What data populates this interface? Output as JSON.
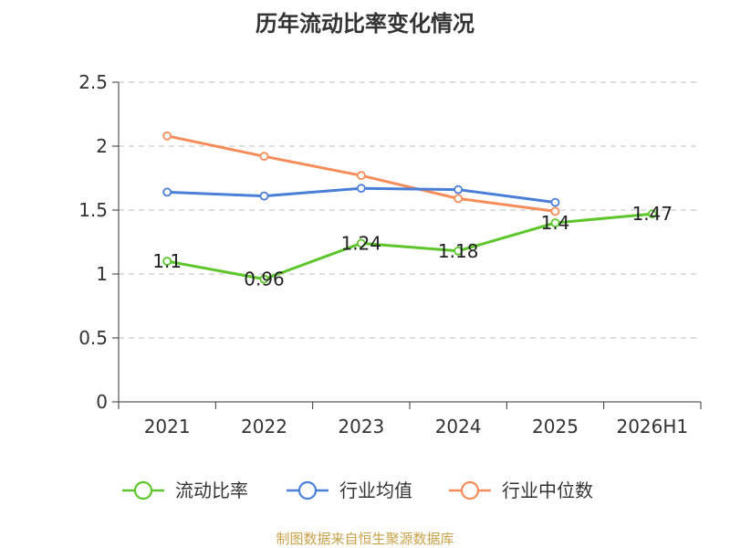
{
  "chart_data": {
    "type": "line",
    "title": "历年流动比率变化情况",
    "categories": [
      "2021",
      "2022",
      "2023",
      "2024",
      "2025",
      "2026H1"
    ],
    "ylim": [
      0,
      2.5
    ],
    "yticks": [
      "0",
      "0.5",
      "1",
      "1.5",
      "2",
      "2.5"
    ],
    "grid": true,
    "legend_position": "bottom",
    "series": [
      {
        "name": "流动比率",
        "color": "#5cc62b",
        "values": [
          1.1,
          0.96,
          1.24,
          1.18,
          1.4,
          1.47
        ],
        "labels": [
          "1.1",
          "0.96",
          "1.24",
          "1.18",
          "1.4",
          "1.47"
        ]
      },
      {
        "name": "行业均值",
        "color": "#4a7fd8",
        "values": [
          1.64,
          1.61,
          1.67,
          1.66,
          1.56,
          null
        ]
      },
      {
        "name": "行业中位数",
        "color": "#f58c5a",
        "values": [
          2.08,
          1.92,
          1.77,
          1.59,
          1.49,
          null
        ]
      }
    ]
  },
  "source": "制图数据来自恒生聚源数据库"
}
